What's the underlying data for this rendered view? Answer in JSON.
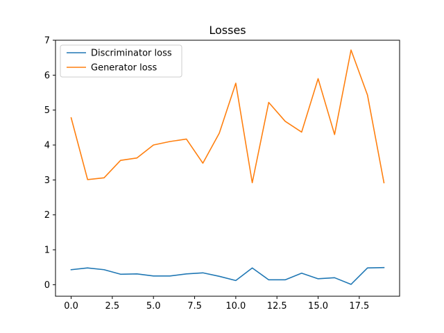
{
  "chart_data": {
    "type": "line",
    "title": "Losses",
    "xlabel": "",
    "ylabel": "",
    "x": [
      0,
      1,
      2,
      3,
      4,
      5,
      6,
      7,
      8,
      9,
      10,
      11,
      12,
      13,
      14,
      15,
      16,
      17,
      18,
      19
    ],
    "xlim": [
      -0.95,
      19.95
    ],
    "ylim": [
      -0.33,
      7.0
    ],
    "xticks": [
      0.0,
      2.5,
      5.0,
      7.5,
      10.0,
      12.5,
      15.0,
      17.5
    ],
    "xtick_labels": [
      "0.0",
      "2.5",
      "5.0",
      "7.5",
      "10.0",
      "12.5",
      "15.0",
      "17.5"
    ],
    "yticks": [
      0,
      1,
      2,
      3,
      4,
      5,
      6,
      7
    ],
    "ytick_labels": [
      "0",
      "1",
      "2",
      "3",
      "4",
      "5",
      "6",
      "7"
    ],
    "grid": false,
    "legend_position": "top-left",
    "series": [
      {
        "name": "Discriminator loss",
        "color": "#1f77b4",
        "values": [
          0.43,
          0.48,
          0.43,
          0.3,
          0.31,
          0.25,
          0.25,
          0.31,
          0.34,
          0.24,
          0.12,
          0.48,
          0.14,
          0.14,
          0.33,
          0.17,
          0.2,
          0.01,
          0.48,
          0.49
        ]
      },
      {
        "name": "Generator loss",
        "color": "#ff7f0e",
        "values": [
          4.78,
          3.01,
          3.06,
          3.56,
          3.63,
          4.0,
          4.1,
          4.17,
          3.48,
          4.34,
          5.77,
          2.92,
          5.22,
          4.68,
          4.37,
          5.9,
          4.3,
          6.72,
          5.43,
          2.92
        ]
      }
    ]
  }
}
